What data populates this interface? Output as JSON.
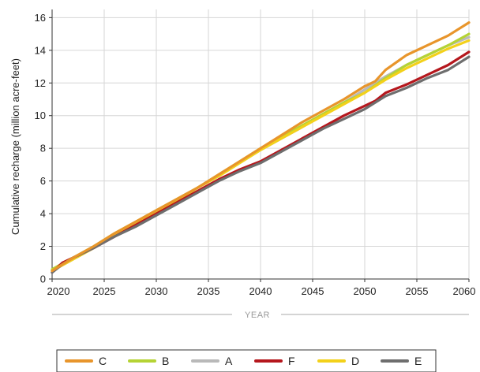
{
  "chart_data": {
    "type": "line",
    "ylabel": "Cumulative recharge (million acre-feet)",
    "xlabel": "YEAR",
    "xlim": [
      2020,
      2060
    ],
    "ylim": [
      0,
      16.5
    ],
    "xticks": [
      2020,
      2025,
      2030,
      2035,
      2040,
      2045,
      2050,
      2055,
      2060
    ],
    "yticks": [
      0,
      2,
      4,
      6,
      8,
      10,
      12,
      14,
      16
    ],
    "grid": true,
    "legend_position": "bottom",
    "series": [
      {
        "name": "C",
        "color": "#e8952b",
        "x": [
          2020,
          2022,
          2024,
          2026,
          2028,
          2030,
          2032,
          2034,
          2036,
          2038,
          2040,
          2042,
          2044,
          2046,
          2048,
          2050,
          2051,
          2052,
          2054,
          2056,
          2058,
          2060
        ],
        "y": [
          0.5,
          1.3,
          2.0,
          2.8,
          3.5,
          4.2,
          4.9,
          5.6,
          6.4,
          7.2,
          8.0,
          8.8,
          9.6,
          10.3,
          11.0,
          11.8,
          12.1,
          12.8,
          13.7,
          14.3,
          14.9,
          15.7
        ]
      },
      {
        "name": "B",
        "color": "#b5d334",
        "x": [
          2020,
          2022,
          2024,
          2026,
          2028,
          2030,
          2032,
          2034,
          2036,
          2038,
          2040,
          2042,
          2044,
          2046,
          2048,
          2050,
          2052,
          2054,
          2056,
          2058,
          2060
        ],
        "y": [
          0.6,
          1.3,
          2.0,
          2.8,
          3.5,
          4.2,
          4.9,
          5.6,
          6.4,
          7.2,
          8.0,
          8.7,
          9.4,
          10.1,
          10.8,
          11.4,
          12.3,
          13.1,
          13.7,
          14.3,
          15.0
        ]
      },
      {
        "name": "A",
        "color": "#b9b9b9",
        "x": [
          2020,
          2022,
          2024,
          2026,
          2028,
          2030,
          2032,
          2034,
          2036,
          2038,
          2040,
          2042,
          2044,
          2046,
          2048,
          2050,
          2052,
          2054,
          2056,
          2058,
          2060
        ],
        "y": [
          0.5,
          1.2,
          1.9,
          2.7,
          3.4,
          4.1,
          4.8,
          5.6,
          6.3,
          7.1,
          7.9,
          8.6,
          9.3,
          10.1,
          10.8,
          11.6,
          12.4,
          13.1,
          13.7,
          14.3,
          14.8
        ]
      },
      {
        "name": "F",
        "color": "#b5171d",
        "x": [
          2020,
          2021,
          2022,
          2024,
          2026,
          2028,
          2030,
          2032,
          2034,
          2036,
          2038,
          2040,
          2042,
          2044,
          2046,
          2048,
          2050,
          2051,
          2052,
          2054,
          2056,
          2058,
          2060
        ],
        "y": [
          0.4,
          1.0,
          1.3,
          1.9,
          2.6,
          3.3,
          4.0,
          4.7,
          5.4,
          6.1,
          6.7,
          7.2,
          7.9,
          8.6,
          9.3,
          10.0,
          10.6,
          10.9,
          11.4,
          11.9,
          12.5,
          13.1,
          13.9
        ]
      },
      {
        "name": "D",
        "color": "#f3d11a",
        "x": [
          2020,
          2022,
          2024,
          2026,
          2028,
          2030,
          2032,
          2034,
          2036,
          2038,
          2040,
          2042,
          2044,
          2046,
          2048,
          2050,
          2052,
          2054,
          2056,
          2058,
          2060
        ],
        "y": [
          0.5,
          1.2,
          1.9,
          2.7,
          3.4,
          4.1,
          4.8,
          5.6,
          6.3,
          7.1,
          7.9,
          8.6,
          9.3,
          10.0,
          10.7,
          11.4,
          12.2,
          12.9,
          13.5,
          14.1,
          14.6
        ]
      },
      {
        "name": "E",
        "color": "#6e6e6e",
        "x": [
          2020,
          2021,
          2022,
          2024,
          2026,
          2028,
          2030,
          2032,
          2034,
          2036,
          2038,
          2040,
          2042,
          2044,
          2046,
          2048,
          2050,
          2051,
          2052,
          2054,
          2056,
          2058,
          2060
        ],
        "y": [
          0.4,
          0.9,
          1.3,
          1.9,
          2.6,
          3.2,
          3.9,
          4.6,
          5.3,
          6.0,
          6.6,
          7.1,
          7.8,
          8.5,
          9.2,
          9.8,
          10.4,
          10.8,
          11.2,
          11.7,
          12.3,
          12.8,
          13.6
        ]
      }
    ]
  }
}
